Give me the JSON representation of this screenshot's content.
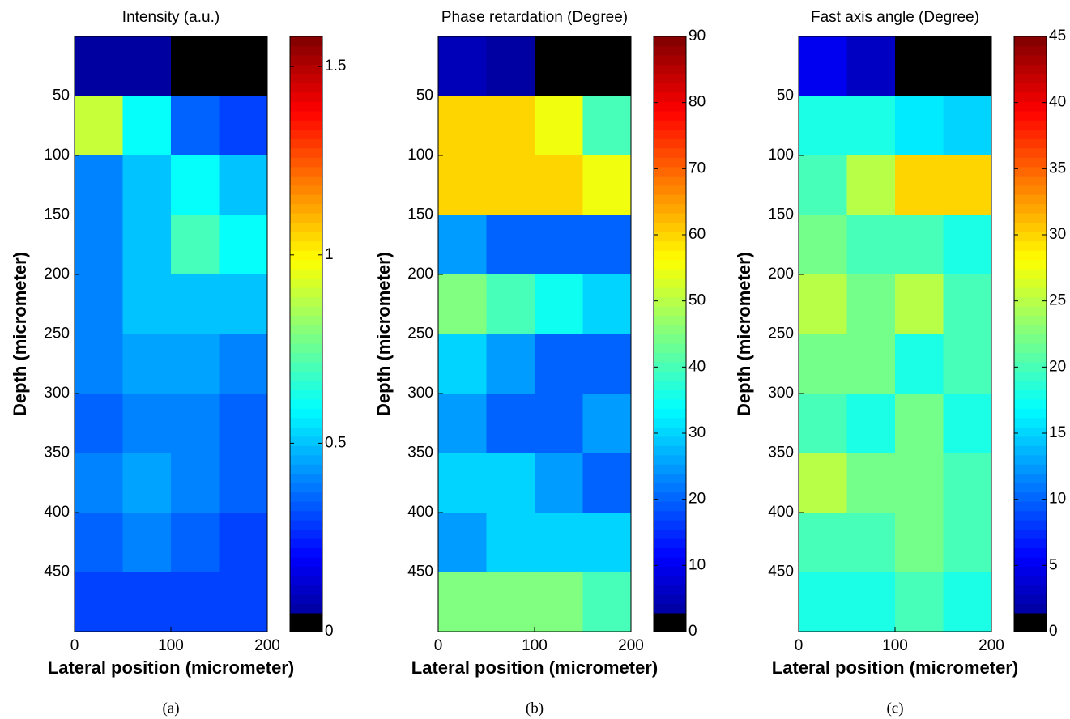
{
  "chart_data": [
    {
      "type": "heatmap",
      "title": "Intensity (a.u.)",
      "xlabel": "Lateral position (micrometer)",
      "ylabel": "Depth (micrometer)",
      "caption": "(a)",
      "colormap": "jet",
      "x_edges": [
        0,
        50,
        100,
        150,
        200
      ],
      "y_edges": [
        0,
        50,
        100,
        150,
        200,
        250,
        300,
        350,
        400,
        450,
        500
      ],
      "values": [
        [
          0.05,
          0.05,
          0.03,
          0.02
        ],
        [
          0.9,
          0.6,
          0.35,
          0.3
        ],
        [
          0.4,
          0.5,
          0.6,
          0.5
        ],
        [
          0.4,
          0.5,
          0.7,
          0.6
        ],
        [
          0.4,
          0.5,
          0.5,
          0.5
        ],
        [
          0.4,
          0.45,
          0.45,
          0.4
        ],
        [
          0.35,
          0.4,
          0.4,
          0.35
        ],
        [
          0.4,
          0.45,
          0.4,
          0.35
        ],
        [
          0.35,
          0.4,
          0.35,
          0.3
        ],
        [
          0.3,
          0.3,
          0.3,
          0.3
        ]
      ],
      "xlim": [
        0,
        200
      ],
      "ylim": [
        0,
        500
      ],
      "yreverse": true,
      "xticks": [
        0,
        100,
        200
      ],
      "yticks": [
        50,
        100,
        150,
        200,
        250,
        300,
        350,
        400,
        450
      ],
      "colorbar": {
        "clim": [
          0,
          1.58
        ],
        "ticks": [
          0,
          0.5,
          1,
          1.5
        ]
      }
    },
    {
      "type": "heatmap",
      "title": "Phase retardation (Degree)",
      "xlabel": "Lateral position (micrometer)",
      "ylabel": "Depth (micrometer)",
      "caption": "(b)",
      "colormap": "jet",
      "x_edges": [
        0,
        50,
        100,
        150,
        200
      ],
      "y_edges": [
        0,
        50,
        100,
        150,
        200,
        250,
        300,
        350,
        400,
        450,
        500
      ],
      "values": [
        [
          5,
          3,
          1,
          0
        ],
        [
          60,
          60,
          55,
          40
        ],
        [
          60,
          60,
          60,
          55
        ],
        [
          25,
          20,
          20,
          20
        ],
        [
          45,
          40,
          35,
          30
        ],
        [
          30,
          25,
          20,
          20
        ],
        [
          25,
          20,
          20,
          25
        ],
        [
          30,
          30,
          25,
          20
        ],
        [
          25,
          30,
          30,
          30
        ],
        [
          45,
          45,
          45,
          40
        ]
      ],
      "xlim": [
        0,
        200
      ],
      "ylim": [
        0,
        500
      ],
      "yreverse": true,
      "xticks": [
        0,
        100,
        200
      ],
      "yticks": [
        50,
        100,
        150,
        200,
        250,
        300,
        350,
        400,
        450
      ],
      "colorbar": {
        "clim": [
          0,
          90
        ],
        "ticks": [
          0,
          10,
          20,
          30,
          40,
          50,
          60,
          70,
          80,
          90
        ]
      }
    },
    {
      "type": "heatmap",
      "title": "Fast axis angle (Degree)",
      "xlabel": "Lateral position (micrometer)",
      "ylabel": "Depth (micrometer)",
      "caption": "(c)",
      "colormap": "jet",
      "x_edges": [
        0,
        50,
        100,
        150,
        200
      ],
      "y_edges": [
        0,
        50,
        100,
        150,
        200,
        250,
        300,
        350,
        400,
        450,
        500
      ],
      "values": [
        [
          5,
          3,
          1,
          0
        ],
        [
          18,
          18,
          16,
          15
        ],
        [
          20,
          25,
          30,
          30
        ],
        [
          22,
          20,
          20,
          18
        ],
        [
          25,
          22,
          25,
          20
        ],
        [
          22,
          22,
          18,
          20
        ],
        [
          20,
          18,
          22,
          18
        ],
        [
          25,
          22,
          22,
          20
        ],
        [
          20,
          20,
          22,
          20
        ],
        [
          18,
          18,
          20,
          18
        ]
      ],
      "xlim": [
        0,
        200
      ],
      "ylim": [
        0,
        500
      ],
      "yreverse": true,
      "xticks": [
        0,
        100,
        200
      ],
      "yticks": [
        50,
        100,
        150,
        200,
        250,
        300,
        350,
        400,
        450
      ],
      "colorbar": {
        "clim": [
          0,
          45
        ],
        "ticks": [
          0,
          5,
          10,
          15,
          20,
          25,
          30,
          35,
          40,
          45
        ]
      }
    }
  ]
}
